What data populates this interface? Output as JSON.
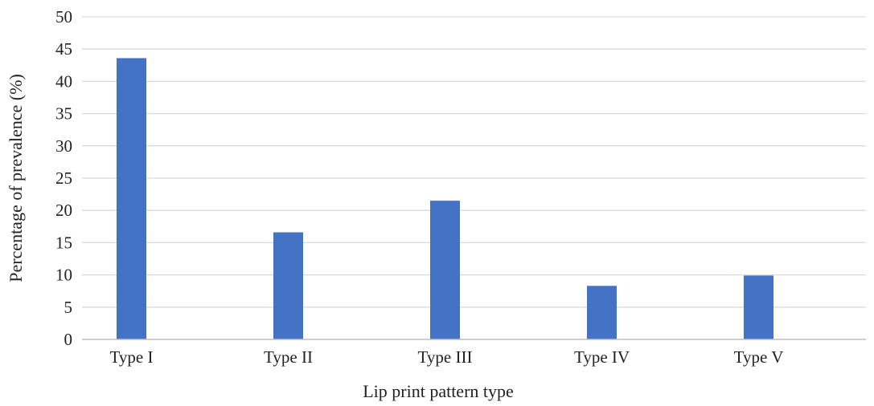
{
  "chart_data": {
    "type": "bar",
    "title": "",
    "xlabel": "Lip print pattern type",
    "ylabel": "Percentage of prevalence (%)",
    "categories": [
      "Type I",
      "Type II",
      "Type III",
      "Type IV",
      "Type V"
    ],
    "values": [
      43.6,
      16.6,
      21.5,
      8.3,
      9.9
    ],
    "ylim": [
      0,
      50
    ],
    "yticks": [
      0,
      5,
      10,
      15,
      20,
      25,
      30,
      35,
      40,
      45,
      50
    ],
    "grid": true,
    "legend": "none",
    "bar_color": "#4472C4",
    "grid_color": "#D9D9D9",
    "axis_color": "#BFBFBF"
  }
}
